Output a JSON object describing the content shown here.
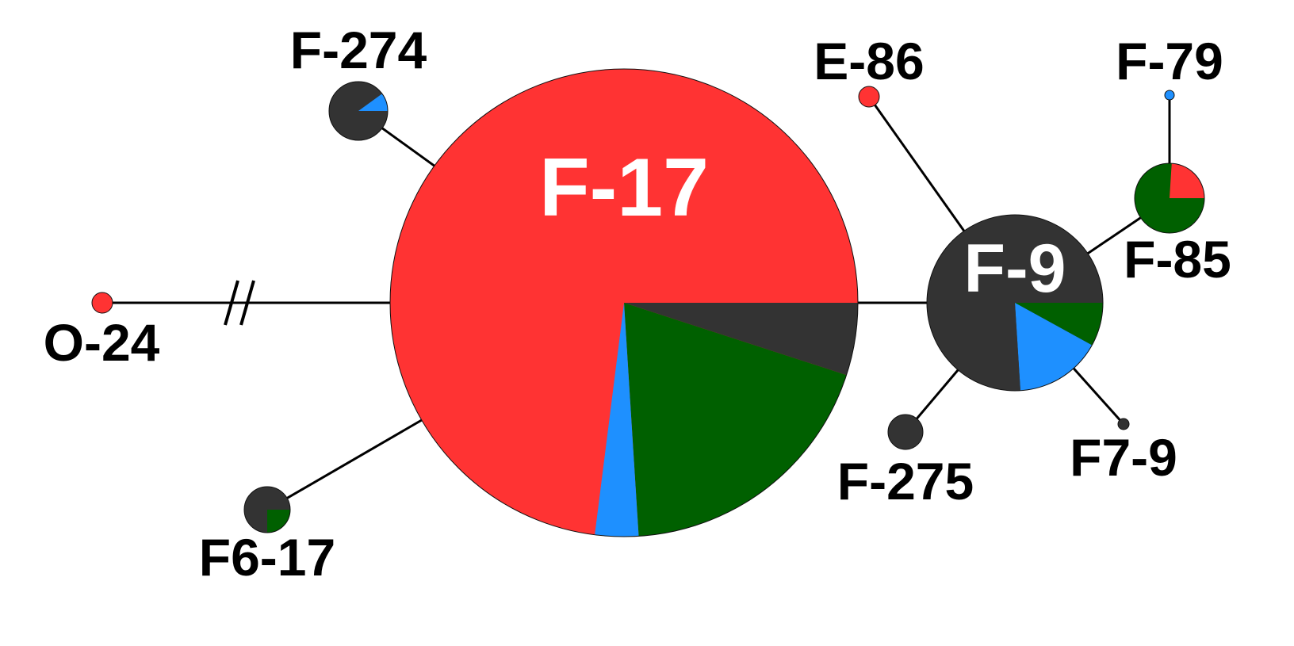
{
  "colors": {
    "red": "#ff3333",
    "dark": "#333333",
    "green": "#006000",
    "blue": "#1e90ff",
    "line": "#000000"
  },
  "nodes": [
    {
      "id": "O-24",
      "label": "O-24",
      "label_color": "#000000",
      "fill": "#ff3333",
      "segments": []
    },
    {
      "id": "F-274",
      "label": "F-274",
      "label_color": "#000000",
      "fill": "#333333",
      "segments": [
        {
          "color": "#333333",
          "fraction": 0.9
        },
        {
          "color": "#1e90ff",
          "fraction": 0.1
        }
      ]
    },
    {
      "id": "F-17",
      "label": "F-17",
      "label_color": "#ffffff",
      "fill": "#ff3333",
      "segments": [
        {
          "color": "#333333",
          "fraction": 0.05
        },
        {
          "color": "#006000",
          "fraction": 0.19
        },
        {
          "color": "#1e90ff",
          "fraction": 0.03
        },
        {
          "color": "#ff3333",
          "fraction": 0.73
        }
      ]
    },
    {
      "id": "F6-17",
      "label": "F6-17",
      "label_color": "#000000",
      "fill": "#333333",
      "segments": [
        {
          "color": "#006000",
          "fraction": 0.25
        },
        {
          "color": "#333333",
          "fraction": 0.75
        }
      ]
    },
    {
      "id": "E-86",
      "label": "E-86",
      "label_color": "#000000",
      "fill": "#ff3333",
      "segments": []
    },
    {
      "id": "F-9",
      "label": "F-9",
      "label_color": "#ffffff",
      "fill": "#333333",
      "segments": [
        {
          "color": "#006000",
          "fraction": 0.08
        },
        {
          "color": "#1e90ff",
          "fraction": 0.16
        },
        {
          "color": "#333333",
          "fraction": 0.76
        }
      ]
    },
    {
      "id": "F-79",
      "label": "F-79",
      "label_color": "#000000",
      "fill": "#1e90ff",
      "segments": []
    },
    {
      "id": "F-85",
      "label": "F-85",
      "label_color": "#000000",
      "fill": "#006000",
      "segments": [
        {
          "color": "#006000",
          "fraction": 0.76
        },
        {
          "color": "#ff3333",
          "fraction": 0.24
        }
      ]
    },
    {
      "id": "F-275",
      "label": "F-275",
      "label_color": "#000000",
      "fill": "#333333",
      "segments": []
    },
    {
      "id": "F7-9",
      "label": "F7-9",
      "label_color": "#000000",
      "fill": "#333333",
      "segments": []
    }
  ],
  "edges": [
    {
      "from": "O-24",
      "to": "F-17",
      "break_mark": true
    },
    {
      "from": "F-274",
      "to": "F-17"
    },
    {
      "from": "F6-17",
      "to": "F-17"
    },
    {
      "from": "F-17",
      "to": "F-9"
    },
    {
      "from": "E-86",
      "to": "F-9"
    },
    {
      "from": "F-85",
      "to": "F-9"
    },
    {
      "from": "F-79",
      "to": "F-85"
    },
    {
      "from": "F-275",
      "to": "F-9"
    },
    {
      "from": "F7-9",
      "to": "F-9"
    }
  ]
}
